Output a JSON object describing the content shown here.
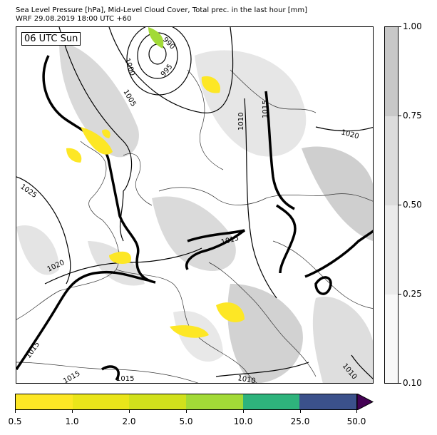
{
  "title_line1": "Sea Level Pressure [hPa], Mid-Level Cloud Cover, Total prec. in the last hour [mm]",
  "title_line2": "WRF 29.08.2019 18:00 UTC +60",
  "time_label": "06 UTC Sun",
  "isobar_labels": [
    "990",
    "995",
    "1000",
    "1005",
    "1010",
    "1015",
    "1015",
    "1015",
    "1015",
    "1015",
    "1010",
    "1010",
    "1020",
    "1020",
    "1025"
  ],
  "cloud_colorbar": {
    "ticks": [
      "1.00",
      "0.75",
      "0.50",
      "0.25",
      "0.10"
    ],
    "colors": [
      "#c8c8c8",
      "#dcdcdc",
      "#ebebeb",
      "#f8f8f8"
    ]
  },
  "precip_colorbar": {
    "ticks": [
      "0.5",
      "1.0",
      "2.0",
      "5.0",
      "10.0",
      "25.0",
      "50.0"
    ],
    "colors": [
      "#fde725",
      "#eae51a",
      "#d1e11c",
      "#a2da37",
      "#2eb37c",
      "#3b518b",
      "#440154"
    ]
  }
}
